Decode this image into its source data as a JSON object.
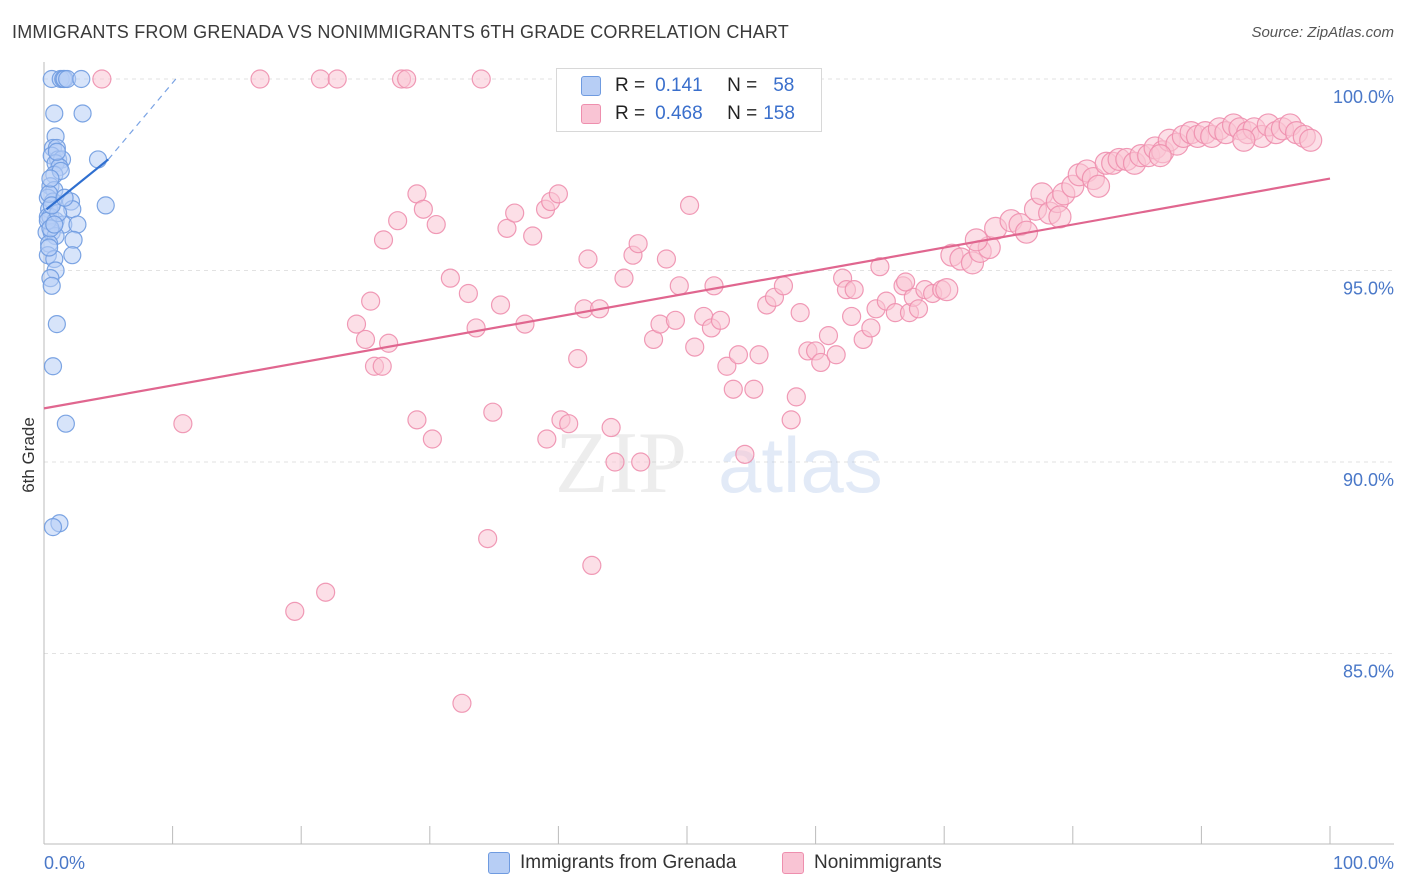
{
  "chart_data": {
    "type": "scatter",
    "title": "IMMIGRANTS FROM GRENADA VS NONIMMIGRANTS 6TH GRADE CORRELATION CHART",
    "source": "Source: ZipAtlas.com",
    "xlabel": "",
    "ylabel": "6th Grade",
    "xlim": [
      0,
      100
    ],
    "ylim": [
      80.5,
      100.7
    ],
    "x_tick_labels": [
      "0.0%",
      "100.0%"
    ],
    "y_ticks": [
      85,
      90,
      95,
      100
    ],
    "y_tick_labels": [
      "85.0%",
      "90.0%",
      "95.0%",
      "100.0%"
    ],
    "watermark": {
      "zip": "ZIP",
      "atlas": "atlas"
    },
    "legend": {
      "series": [
        {
          "r_label": "R =",
          "r_value": "0.141",
          "n_label": "N =",
          "n_value": "58"
        },
        {
          "r_label": "R =",
          "r_value": "0.468",
          "n_label": "N =",
          "n_value": "158"
        }
      ]
    },
    "series": [
      {
        "name": "Immigrants from Grenada",
        "color": "#6f9be0",
        "fill": "#b7cef5",
        "trend": {
          "x": [
            0.2,
            5.0
          ],
          "y": [
            96.6,
            97.9
          ]
        },
        "trend_dashed": {
          "x": [
            5.0,
            10.5
          ],
          "y": [
            97.9,
            100.1
          ]
        },
        "points": [
          [
            0.6,
            100
          ],
          [
            1.3,
            100
          ],
          [
            1.5,
            100
          ],
          [
            1.6,
            100
          ],
          [
            1.8,
            100
          ],
          [
            2.9,
            100
          ],
          [
            0.8,
            99.1
          ],
          [
            3.0,
            99.1
          ],
          [
            0.9,
            98.5
          ],
          [
            0.7,
            98.2
          ],
          [
            1.0,
            98.2
          ],
          [
            0.6,
            98.0
          ],
          [
            1.1,
            97.9
          ],
          [
            1.4,
            97.9
          ],
          [
            4.2,
            97.9
          ],
          [
            0.9,
            97.8
          ],
          [
            1.2,
            97.7
          ],
          [
            0.8,
            97.5
          ],
          [
            0.5,
            97.2
          ],
          [
            0.8,
            97.1
          ],
          [
            0.3,
            96.9
          ],
          [
            0.7,
            96.8
          ],
          [
            2.1,
            96.8
          ],
          [
            4.8,
            96.7
          ],
          [
            0.4,
            96.6
          ],
          [
            2.2,
            96.6
          ],
          [
            0.3,
            96.4
          ],
          [
            0.5,
            96.4
          ],
          [
            0.9,
            96.3
          ],
          [
            1.5,
            96.2
          ],
          [
            2.6,
            96.2
          ],
          [
            0.2,
            96.0
          ],
          [
            0.6,
            96.0
          ],
          [
            0.9,
            95.9
          ],
          [
            2.3,
            95.8
          ],
          [
            0.4,
            95.7
          ],
          [
            0.3,
            95.4
          ],
          [
            2.2,
            95.4
          ],
          [
            0.8,
            95.3
          ],
          [
            0.9,
            95.0
          ],
          [
            0.5,
            94.8
          ],
          [
            0.6,
            94.6
          ],
          [
            1.0,
            93.6
          ],
          [
            0.7,
            92.5
          ],
          [
            1.7,
            91.0
          ],
          [
            1.2,
            88.4
          ],
          [
            0.7,
            88.3
          ],
          [
            0.3,
            96.3
          ],
          [
            0.5,
            96.1
          ],
          [
            1.1,
            96.5
          ],
          [
            0.4,
            97.0
          ],
          [
            0.6,
            96.7
          ],
          [
            1.3,
            97.6
          ],
          [
            0.8,
            96.2
          ],
          [
            0.4,
            95.6
          ],
          [
            1.6,
            96.9
          ],
          [
            0.5,
            97.4
          ],
          [
            1.0,
            98.1
          ]
        ]
      },
      {
        "name": "Nonimmigrants",
        "color": "#ee8fae",
        "fill": "#f9c4d4",
        "trend": {
          "x": [
            0,
            100
          ],
          "y": [
            91.4,
            97.4
          ]
        },
        "points": [
          [
            4.5,
            100
          ],
          [
            16.8,
            100
          ],
          [
            21.5,
            100
          ],
          [
            22.8,
            100
          ],
          [
            27.8,
            100
          ],
          [
            28.2,
            100
          ],
          [
            34.0,
            100
          ],
          [
            10.8,
            91.0
          ],
          [
            19.5,
            86.1
          ],
          [
            21.9,
            86.6
          ],
          [
            25.7,
            92.5
          ],
          [
            24.3,
            93.6
          ],
          [
            25.0,
            93.2
          ],
          [
            25.4,
            94.2
          ],
          [
            26.3,
            92.5
          ],
          [
            26.8,
            93.1
          ],
          [
            26.4,
            95.8
          ],
          [
            27.5,
            96.3
          ],
          [
            29.0,
            97.0
          ],
          [
            29.5,
            96.6
          ],
          [
            30.5,
            96.2
          ],
          [
            29.0,
            91.1
          ],
          [
            30.2,
            90.6
          ],
          [
            31.6,
            94.8
          ],
          [
            33.0,
            94.4
          ],
          [
            33.6,
            93.5
          ],
          [
            34.9,
            91.3
          ],
          [
            35.5,
            94.1
          ],
          [
            34.5,
            88.0
          ],
          [
            32.5,
            83.7
          ],
          [
            36.0,
            96.1
          ],
          [
            36.6,
            96.5
          ],
          [
            37.4,
            93.6
          ],
          [
            38.0,
            95.9
          ],
          [
            39.0,
            96.6
          ],
          [
            39.4,
            96.8
          ],
          [
            40.0,
            97.0
          ],
          [
            39.1,
            90.6
          ],
          [
            40.2,
            91.1
          ],
          [
            40.8,
            91.0
          ],
          [
            41.5,
            92.7
          ],
          [
            42.0,
            94.0
          ],
          [
            42.3,
            95.3
          ],
          [
            42.6,
            87.3
          ],
          [
            43.2,
            94.0
          ],
          [
            44.1,
            90.9
          ],
          [
            44.4,
            90.0
          ],
          [
            45.1,
            94.8
          ],
          [
            45.8,
            95.4
          ],
          [
            46.2,
            95.7
          ],
          [
            46.4,
            90.0
          ],
          [
            47.4,
            93.2
          ],
          [
            47.9,
            93.6
          ],
          [
            48.4,
            95.3
          ],
          [
            49.1,
            93.7
          ],
          [
            49.4,
            94.6
          ],
          [
            50.2,
            96.7
          ],
          [
            50.6,
            93.0
          ],
          [
            51.3,
            93.8
          ],
          [
            51.9,
            93.5
          ],
          [
            52.6,
            93.7
          ],
          [
            52.1,
            94.6
          ],
          [
            53.1,
            92.5
          ],
          [
            53.6,
            91.9
          ],
          [
            54.0,
            92.8
          ],
          [
            54.5,
            90.2
          ],
          [
            55.2,
            91.9
          ],
          [
            55.6,
            92.8
          ],
          [
            56.2,
            94.1
          ],
          [
            56.8,
            94.3
          ],
          [
            57.5,
            94.6
          ],
          [
            58.1,
            91.1
          ],
          [
            58.5,
            91.7
          ],
          [
            58.8,
            93.9
          ],
          [
            59.4,
            92.9
          ],
          [
            60.0,
            92.9
          ],
          [
            60.4,
            92.6
          ],
          [
            61.0,
            93.3
          ],
          [
            61.6,
            92.8
          ],
          [
            62.1,
            94.8
          ],
          [
            62.4,
            94.5
          ],
          [
            63.0,
            94.5
          ],
          [
            63.7,
            93.2
          ],
          [
            64.3,
            93.5
          ],
          [
            64.7,
            94.0
          ],
          [
            65.0,
            95.1
          ],
          [
            65.5,
            94.2
          ],
          [
            66.2,
            93.9
          ],
          [
            66.8,
            94.6
          ],
          [
            67.3,
            93.9
          ],
          [
            67.6,
            94.3
          ],
          [
            68.0,
            94.0
          ],
          [
            68.5,
            94.5
          ],
          [
            69.1,
            94.4
          ],
          [
            69.8,
            94.5
          ],
          [
            70.2,
            94.5
          ],
          [
            70.6,
            95.4
          ],
          [
            71.3,
            95.3
          ],
          [
            72.2,
            95.2
          ],
          [
            72.8,
            95.5
          ],
          [
            73.5,
            95.6
          ],
          [
            74.0,
            96.1
          ],
          [
            75.2,
            96.3
          ],
          [
            75.9,
            96.2
          ],
          [
            76.4,
            96.0
          ],
          [
            77.1,
            96.6
          ],
          [
            77.6,
            97.0
          ],
          [
            78.2,
            96.5
          ],
          [
            78.8,
            96.8
          ],
          [
            79.3,
            97.0
          ],
          [
            80.0,
            97.2
          ],
          [
            80.5,
            97.5
          ],
          [
            81.1,
            97.6
          ],
          [
            81.6,
            97.4
          ],
          [
            82.0,
            97.2
          ],
          [
            82.6,
            97.8
          ],
          [
            83.1,
            97.8
          ],
          [
            83.6,
            97.9
          ],
          [
            84.2,
            97.9
          ],
          [
            84.8,
            97.8
          ],
          [
            85.3,
            98.0
          ],
          [
            85.9,
            98.0
          ],
          [
            86.4,
            98.2
          ],
          [
            87.0,
            98.1
          ],
          [
            87.5,
            98.4
          ],
          [
            88.1,
            98.3
          ],
          [
            88.6,
            98.5
          ],
          [
            89.2,
            98.6
          ],
          [
            89.7,
            98.5
          ],
          [
            90.3,
            98.6
          ],
          [
            90.8,
            98.5
          ],
          [
            91.4,
            98.7
          ],
          [
            91.9,
            98.6
          ],
          [
            92.5,
            98.8
          ],
          [
            93.0,
            98.7
          ],
          [
            93.6,
            98.6
          ],
          [
            94.1,
            98.7
          ],
          [
            94.7,
            98.5
          ],
          [
            95.2,
            98.8
          ],
          [
            95.8,
            98.6
          ],
          [
            96.3,
            98.7
          ],
          [
            96.9,
            98.8
          ],
          [
            97.4,
            98.6
          ],
          [
            98.0,
            98.5
          ],
          [
            98.5,
            98.4
          ],
          [
            79.0,
            96.4
          ],
          [
            72.5,
            95.8
          ],
          [
            67.0,
            94.7
          ],
          [
            62.8,
            93.8
          ],
          [
            86.8,
            98.0
          ],
          [
            93.3,
            98.4
          ]
        ]
      }
    ]
  }
}
